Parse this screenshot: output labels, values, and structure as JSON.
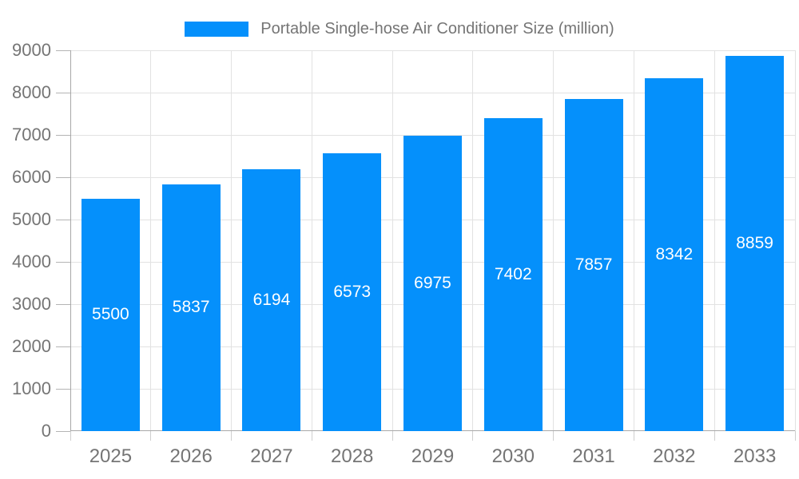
{
  "colors": {
    "bar": "#0590fb",
    "bar_label": "#ffffff",
    "axis_text": "#757575",
    "grid_line": "#e2e2e2",
    "axis_line": "#a8a8a8",
    "background": "#ffffff"
  },
  "legend": {
    "label": "Portable Single-hose Air Conditioner Size (million)"
  },
  "chart_data": {
    "type": "bar",
    "title": "Portable Single-hose Air Conditioner Size (million)",
    "categories": [
      "2025",
      "2026",
      "2027",
      "2028",
      "2029",
      "2030",
      "2031",
      "2032",
      "2033"
    ],
    "values": [
      5500,
      5837,
      6194,
      6573,
      6975,
      7402,
      7857,
      8342,
      8859
    ],
    "xlabel": "",
    "ylabel": "",
    "ylim": [
      0,
      9000
    ],
    "ytick_step": 1000,
    "grid": true,
    "legend_position": "top",
    "bar_value_labels": "inside-center"
  }
}
